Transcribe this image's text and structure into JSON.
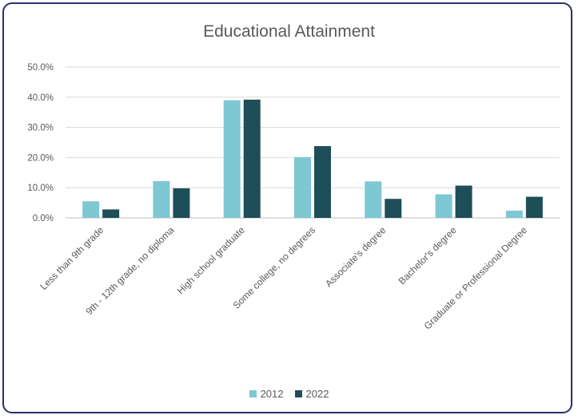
{
  "chart_data": {
    "type": "bar",
    "title": "Educational Attainment",
    "categories": [
      "Less than 9th grade",
      "9th - 12th grade, no diploma",
      "High school graduate",
      "Some college, no degrees",
      "Associate's degree",
      "Bachelor's degree",
      "Graduate or Professional Degree"
    ],
    "series": [
      {
        "name": "2012",
        "color": "#7dc8d3",
        "values": [
          5.5,
          12.2,
          39.0,
          20.1,
          12.1,
          7.8,
          2.4
        ]
      },
      {
        "name": "2022",
        "color": "#1e4e57",
        "values": [
          2.8,
          9.8,
          39.2,
          23.8,
          6.3,
          10.7,
          7.0
        ]
      }
    ],
    "yticks": [
      "0.0%",
      "10.0%",
      "20.0%",
      "30.0%",
      "40.0%",
      "50.0%"
    ],
    "ylim": [
      0,
      50
    ],
    "grid": true,
    "legend_position": "bottom"
  }
}
